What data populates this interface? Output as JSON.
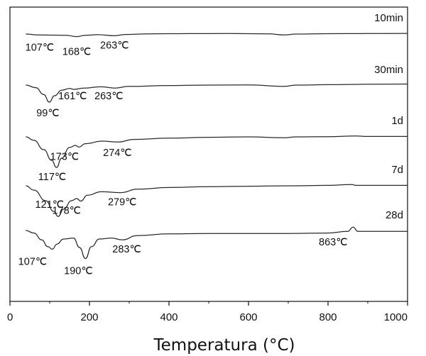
{
  "chart_data": {
    "type": "line",
    "xlabel": "Temperatura (°C)",
    "xlim": [
      0,
      1000
    ],
    "xticks": [
      0,
      200,
      400,
      600,
      800,
      1000
    ],
    "grid": false,
    "series": [
      {
        "name": "10min",
        "points": [
          [
            40,
            0
          ],
          [
            70,
            -2
          ],
          [
            107,
            -2.5
          ],
          [
            140,
            -3
          ],
          [
            168,
            -6
          ],
          [
            190,
            -3
          ],
          [
            220,
            -1.5
          ],
          [
            263,
            -4
          ],
          [
            290,
            -1
          ],
          [
            350,
            0.5
          ],
          [
            450,
            1
          ],
          [
            550,
            1.2
          ],
          [
            650,
            0.5
          ],
          [
            690,
            -2
          ],
          [
            720,
            0
          ],
          [
            800,
            0.8
          ],
          [
            900,
            1.2
          ],
          [
            1000,
            1.5
          ]
        ],
        "annotations": [
          {
            "text": "107℃",
            "x": 107,
            "y": -2.5
          },
          {
            "text": "168℃",
            "x": 168,
            "y": -6
          },
          {
            "text": "263℃",
            "x": 263,
            "y": -4
          }
        ]
      },
      {
        "name": "30min",
        "points": [
          [
            40,
            0
          ],
          [
            65,
            -6
          ],
          [
            85,
            -22
          ],
          [
            99,
            -40
          ],
          [
            112,
            -25
          ],
          [
            130,
            -12
          ],
          [
            150,
            -8
          ],
          [
            161,
            -10
          ],
          [
            185,
            -7
          ],
          [
            230,
            -4
          ],
          [
            263,
            -7
          ],
          [
            300,
            -3
          ],
          [
            400,
            -1
          ],
          [
            500,
            0
          ],
          [
            600,
            0.5
          ],
          [
            690,
            -3
          ],
          [
            720,
            0
          ],
          [
            800,
            1
          ],
          [
            900,
            2
          ],
          [
            1000,
            2.5
          ]
        ],
        "annotations": [
          {
            "text": "99℃",
            "x": 99,
            "y": -40
          },
          {
            "text": "161℃",
            "x": 161,
            "y": -10
          },
          {
            "text": "263℃",
            "x": 263,
            "y": -7
          }
        ]
      },
      {
        "name": "1d",
        "points": [
          [
            40,
            0
          ],
          [
            60,
            -8
          ],
          [
            85,
            -30
          ],
          [
            105,
            -55
          ],
          [
            117,
            -72
          ],
          [
            130,
            -50
          ],
          [
            150,
            -25
          ],
          [
            165,
            -20
          ],
          [
            173,
            -24
          ],
          [
            190,
            -16
          ],
          [
            230,
            -10
          ],
          [
            274,
            -12
          ],
          [
            310,
            -6
          ],
          [
            400,
            -3
          ],
          [
            500,
            -1
          ],
          [
            600,
            0
          ],
          [
            690,
            -2
          ],
          [
            720,
            0
          ],
          [
            800,
            0.5
          ],
          [
            870,
            2
          ],
          [
            900,
            1
          ],
          [
            1000,
            1
          ]
        ],
        "annotations": [
          {
            "text": "117℃",
            "x": 117,
            "y": -72
          },
          {
            "text": "173℃",
            "x": 173,
            "y": -24
          },
          {
            "text": "274℃",
            "x": 274,
            "y": -12
          }
        ]
      },
      {
        "name": "7d",
        "points": [
          [
            40,
            0
          ],
          [
            60,
            -10
          ],
          [
            90,
            -35
          ],
          [
            110,
            -60
          ],
          [
            121,
            -72
          ],
          [
            135,
            -55
          ],
          [
            155,
            -35
          ],
          [
            168,
            -30
          ],
          [
            178,
            -36
          ],
          [
            195,
            -22
          ],
          [
            230,
            -14
          ],
          [
            279,
            -16
          ],
          [
            320,
            -8
          ],
          [
            400,
            -4
          ],
          [
            500,
            -2
          ],
          [
            600,
            -1
          ],
          [
            700,
            0
          ],
          [
            800,
            1
          ],
          [
            860,
            3
          ],
          [
            870,
            1
          ],
          [
            900,
            1
          ],
          [
            1000,
            1
          ]
        ],
        "annotations": [
          {
            "text": "121℃",
            "x": 121,
            "y": -72
          },
          {
            "text": "178℃",
            "x": 178,
            "y": -36
          },
          {
            "text": "279℃",
            "x": 279,
            "y": -16
          }
        ]
      },
      {
        "name": "28d",
        "points": [
          [
            40,
            0
          ],
          [
            60,
            -6
          ],
          [
            80,
            -22
          ],
          [
            95,
            -38
          ],
          [
            107,
            -44
          ],
          [
            118,
            -32
          ],
          [
            135,
            -20
          ],
          [
            160,
            -18
          ],
          [
            175,
            -40
          ],
          [
            190,
            -66
          ],
          [
            205,
            -38
          ],
          [
            225,
            -20
          ],
          [
            255,
            -18
          ],
          [
            283,
            -22
          ],
          [
            320,
            -12
          ],
          [
            400,
            -8
          ],
          [
            500,
            -7
          ],
          [
            600,
            -7
          ],
          [
            700,
            -7
          ],
          [
            800,
            -6
          ],
          [
            850,
            -2
          ],
          [
            863,
            8
          ],
          [
            875,
            -2
          ],
          [
            900,
            -2
          ],
          [
            1000,
            -2
          ]
        ],
        "annotations": [
          {
            "text": "107℃",
            "x": 107,
            "y": -44
          },
          {
            "text": "190℃",
            "x": 190,
            "y": -66
          },
          {
            "text": "283℃",
            "x": 283,
            "y": -22
          },
          {
            "text": "863℃",
            "x": 863,
            "y": 8
          }
        ]
      }
    ]
  }
}
